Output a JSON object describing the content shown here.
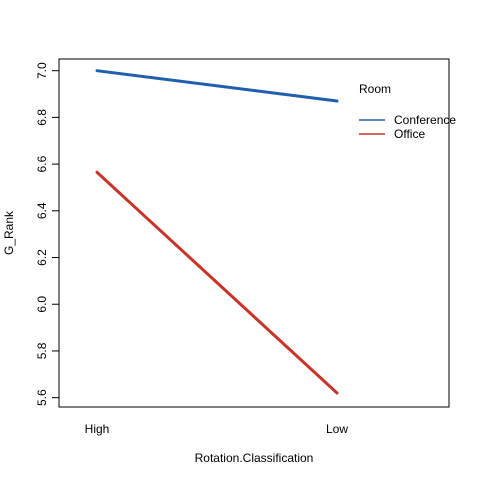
{
  "chart_data": {
    "type": "line",
    "title": "",
    "xlabel": "Rotation.Classification",
    "ylabel": "G_Rank",
    "categories": [
      "High",
      "Low"
    ],
    "series": [
      {
        "name": "Conference",
        "values": [
          7.0,
          6.87
        ],
        "color": "#1f5fae"
      },
      {
        "name": "Office",
        "values": [
          6.565,
          5.62
        ],
        "color": "#c8342a"
      }
    ],
    "ylim": [
      5.56,
      7.05
    ],
    "yticks": [
      5.6,
      5.8,
      6.0,
      6.2,
      6.4,
      6.6,
      6.8,
      7.0
    ],
    "ytick_labels": [
      "5.6",
      "5.8",
      "6.0",
      "6.2",
      "6.4",
      "6.6",
      "6.8",
      "7.0"
    ],
    "legend": {
      "title": "Room",
      "position": "top-right",
      "entries": [
        "Conference",
        "Office"
      ]
    },
    "grid": false
  }
}
